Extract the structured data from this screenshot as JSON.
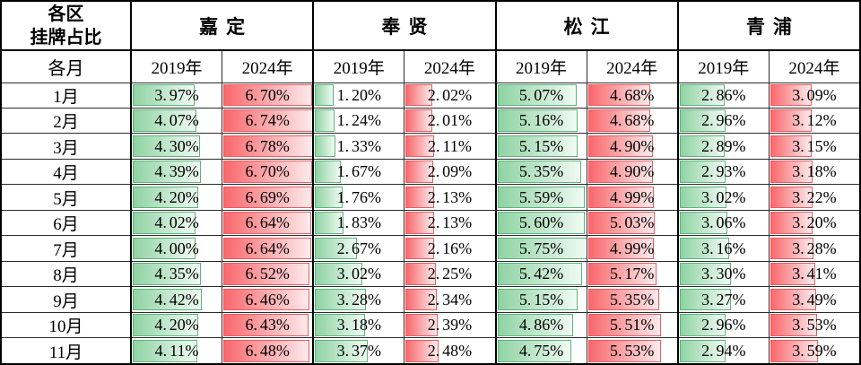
{
  "table": {
    "corner": {
      "line1": "各区",
      "line2": "挂牌占比"
    },
    "row_axis_label": "各月",
    "districts": [
      "嘉定",
      "奉贤",
      "松江",
      "青浦"
    ],
    "year_headers": [
      "2019年",
      "2024年"
    ],
    "unit": "%"
  },
  "bar_scale": {
    "year_2019_max": 5.75,
    "year_2024_max": 6.78
  },
  "colors": {
    "bar_2019_fill_start": "#8fd3a3",
    "bar_2019_fill_end": "#f0faf3",
    "bar_2019_border": "#5cb57a",
    "bar_2024_fill_start": "#f9686c",
    "bar_2024_fill_end": "#fdeaec",
    "bar_2024_border": "#ef5a5f",
    "grid_line": "#2b2b2b",
    "text": "#000000",
    "background": "#ffffff"
  },
  "chart_data": {
    "type": "table",
    "title": "各区挂牌占比",
    "categories": [
      "1月",
      "2月",
      "3月",
      "4月",
      "5月",
      "6月",
      "7月",
      "8月",
      "9月",
      "10月",
      "11月"
    ],
    "series": [
      {
        "name": "嘉定 2019年",
        "values": [
          3.97,
          4.07,
          4.3,
          4.39,
          4.2,
          4.02,
          4.0,
          4.35,
          4.42,
          4.2,
          4.11
        ]
      },
      {
        "name": "嘉定 2024年",
        "values": [
          6.7,
          6.74,
          6.78,
          6.7,
          6.69,
          6.64,
          6.64,
          6.52,
          6.46,
          6.43,
          6.48
        ]
      },
      {
        "name": "奉贤 2019年",
        "values": [
          1.2,
          1.24,
          1.33,
          1.67,
          1.76,
          1.83,
          2.67,
          3.02,
          3.28,
          3.18,
          3.37
        ]
      },
      {
        "name": "奉贤 2024年",
        "values": [
          2.02,
          2.01,
          2.11,
          2.09,
          2.13,
          2.13,
          2.16,
          2.25,
          2.34,
          2.39,
          2.48
        ]
      },
      {
        "name": "松江 2019年",
        "values": [
          5.07,
          5.16,
          5.15,
          5.35,
          5.59,
          5.6,
          5.75,
          5.42,
          5.15,
          4.86,
          4.75
        ]
      },
      {
        "name": "松江 2024年",
        "values": [
          4.68,
          4.68,
          4.9,
          4.9,
          4.99,
          5.03,
          4.99,
          5.17,
          5.35,
          5.51,
          5.53
        ]
      },
      {
        "name": "青浦 2019年",
        "values": [
          2.86,
          2.96,
          2.89,
          2.93,
          3.02,
          3.06,
          3.16,
          3.3,
          3.27,
          2.96,
          2.94
        ]
      },
      {
        "name": "青浦 2024年",
        "values": [
          3.09,
          3.12,
          3.15,
          3.18,
          3.22,
          3.2,
          3.28,
          3.41,
          3.49,
          3.53,
          3.59
        ]
      }
    ]
  }
}
